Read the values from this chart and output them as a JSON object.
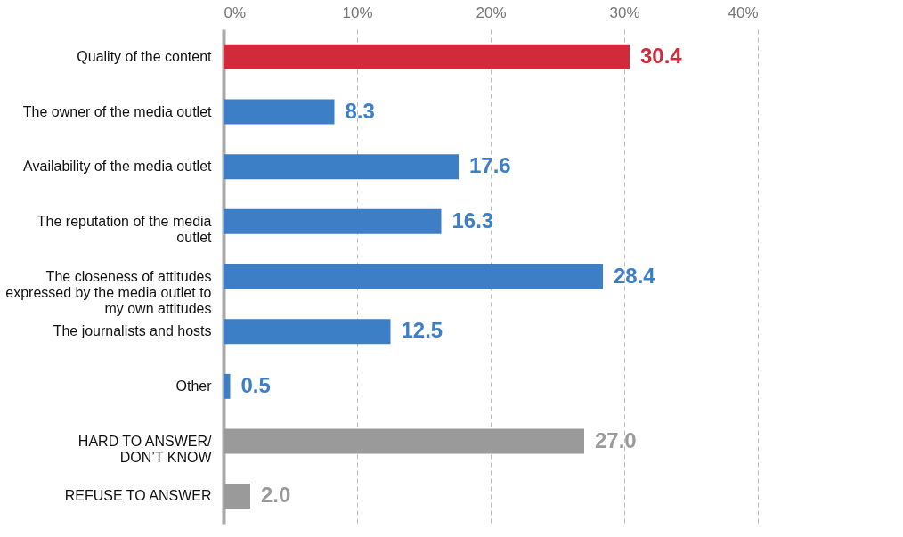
{
  "chart_data": {
    "type": "bar",
    "orientation": "horizontal",
    "categories": [
      "Quality of the content",
      "The owner of the media outlet",
      "Availability of the media outlet",
      "The reputation of the media\noutlet",
      "The closeness of attitudes\nexpressed by the media outlet to\nmy own attitudes",
      "The journalists and hosts",
      "Other",
      "HARD TO ANSWER/\nDON’T KNOW",
      "REFUSE TO ANSWER"
    ],
    "values": [
      30.4,
      8.3,
      17.6,
      16.3,
      28.4,
      12.5,
      0.5,
      27.0,
      2.0
    ],
    "value_labels": [
      "30.4",
      "8.3",
      "17.6",
      "16.3",
      "28.4",
      "12.5",
      "0.5",
      "27.0",
      "2.0"
    ],
    "colors": [
      "#d12a3a",
      "#3d7fc6",
      "#3d7fc6",
      "#3d7fc6",
      "#3d7fc6",
      "#3d7fc6",
      "#3d7fc6",
      "#9a9a9a",
      "#9a9a9a"
    ],
    "xlim": [
      0,
      40
    ],
    "xticks": [
      {
        "value": 0,
        "label": "0%"
      },
      {
        "value": 10,
        "label": "10%"
      },
      {
        "value": 20,
        "label": "20%"
      },
      {
        "value": 30,
        "label": "30%"
      },
      {
        "value": 40,
        "label": "40%"
      }
    ],
    "grid": "x"
  }
}
